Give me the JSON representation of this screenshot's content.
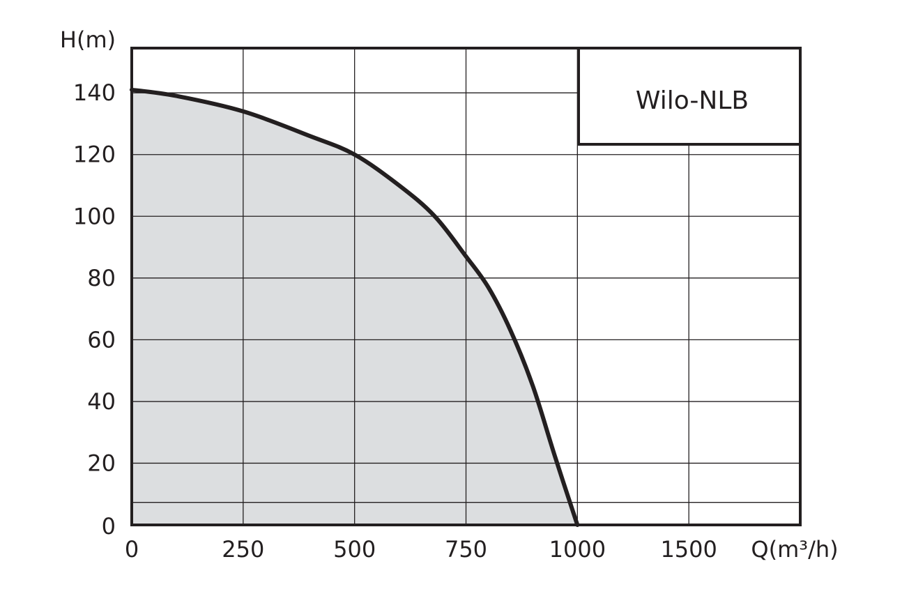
{
  "chart_data": {
    "type": "area",
    "ylabel": "H(m)",
    "xlabel": "Q(m³/h)",
    "legend_text": "Wilo-NLB",
    "legend_position": "top-right",
    "grid": true,
    "x_ticks": [
      "0",
      "250",
      "500",
      "750",
      "1000",
      "1500"
    ],
    "y_ticks": [
      "0",
      "20",
      "40",
      "60",
      "80",
      "100",
      "120",
      "140"
    ],
    "series": [
      {
        "x": [
          0,
          100,
          250,
          400,
          500,
          600,
          680,
          750,
          800,
          850,
          900,
          950,
          1000
        ],
        "y": [
          141,
          139,
          134,
          126,
          120,
          110,
          100,
          87,
          77,
          63,
          45,
          22,
          0
        ]
      }
    ],
    "colors": {
      "fill": "#dcdee0",
      "curve": "#231f20",
      "grid": "#231f20",
      "frame": "#231f20"
    }
  }
}
